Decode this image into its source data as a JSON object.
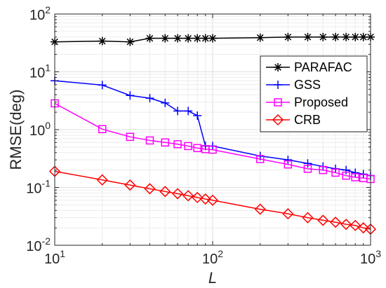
{
  "chart_data": {
    "type": "line",
    "title": "",
    "xlabel": "L",
    "ylabel": "RMSE(deg)",
    "xscale": "log",
    "yscale": "log",
    "xlim": [
      10,
      1000
    ],
    "ylim": [
      0.01,
      100
    ],
    "grid": true,
    "legend_position": "top-right",
    "x_ticks": [
      {
        "value": 10,
        "base": "10",
        "exp": "1"
      },
      {
        "value": 100,
        "base": "10",
        "exp": "2"
      },
      {
        "value": 1000,
        "base": "10",
        "exp": "3"
      }
    ],
    "y_ticks": [
      {
        "value": 0.01,
        "base": "10",
        "exp": "-2"
      },
      {
        "value": 0.1,
        "base": "10",
        "exp": "-1"
      },
      {
        "value": 1,
        "base": "10",
        "exp": "0"
      },
      {
        "value": 10,
        "base": "10",
        "exp": "1"
      },
      {
        "value": 100,
        "base": "10",
        "exp": "2"
      }
    ],
    "series": [
      {
        "name": "PARAFAC",
        "color": "#000000",
        "marker": "asterisk",
        "x": [
          10,
          20,
          30,
          40,
          50,
          60,
          70,
          80,
          90,
          100,
          200,
          300,
          400,
          500,
          600,
          700,
          800,
          900,
          1000
        ],
        "y": [
          33,
          34,
          33,
          38,
          38,
          38,
          38,
          38,
          38,
          38,
          39,
          40,
          40,
          40,
          40,
          40,
          40,
          40,
          40
        ]
      },
      {
        "name": "GSS",
        "color": "#0000ff",
        "marker": "plus",
        "x": [
          10,
          20,
          30,
          40,
          50,
          60,
          70,
          80,
          90,
          100,
          200,
          300,
          400,
          500,
          600,
          700,
          800,
          900,
          1000
        ],
        "y": [
          7.0,
          5.9,
          3.9,
          3.5,
          2.9,
          2.1,
          2.1,
          1.75,
          0.52,
          0.52,
          0.35,
          0.3,
          0.26,
          0.23,
          0.21,
          0.2,
          0.18,
          0.17,
          0.16
        ]
      },
      {
        "name": "Proposed",
        "color": "#ff00ff",
        "marker": "square",
        "x": [
          10,
          20,
          30,
          40,
          50,
          60,
          70,
          80,
          90,
          100,
          200,
          300,
          400,
          500,
          600,
          700,
          800,
          900,
          1000
        ],
        "y": [
          2.85,
          1.02,
          0.75,
          0.65,
          0.6,
          0.56,
          0.52,
          0.48,
          0.46,
          0.45,
          0.31,
          0.25,
          0.21,
          0.2,
          0.18,
          0.16,
          0.15,
          0.145,
          0.14
        ]
      },
      {
        "name": "CRB",
        "color": "#ff0000",
        "marker": "diamond",
        "x": [
          10,
          20,
          30,
          40,
          50,
          60,
          70,
          80,
          90,
          100,
          200,
          300,
          400,
          500,
          600,
          700,
          800,
          900,
          1000
        ],
        "y": [
          0.19,
          0.135,
          0.11,
          0.095,
          0.085,
          0.078,
          0.072,
          0.067,
          0.063,
          0.06,
          0.042,
          0.035,
          0.03,
          0.027,
          0.025,
          0.023,
          0.022,
          0.02,
          0.019
        ]
      }
    ]
  }
}
